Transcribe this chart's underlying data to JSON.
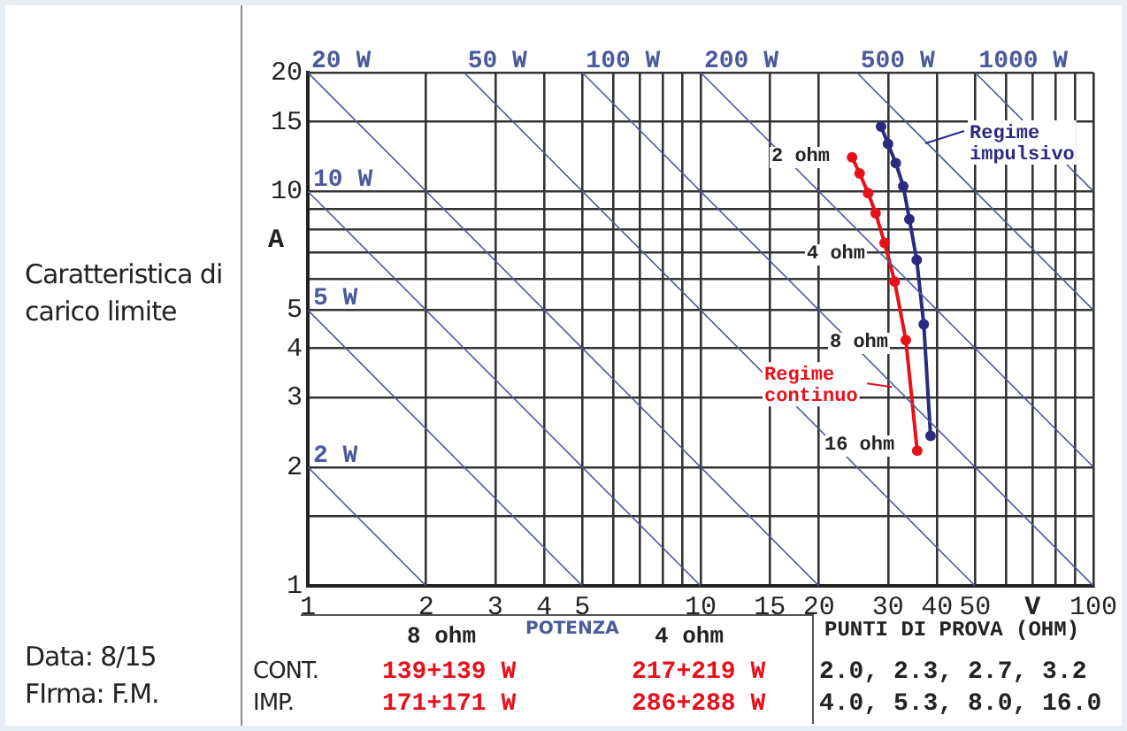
{
  "chart_data": {
    "type": "line",
    "title": "Caratteristica di carico limite",
    "xlabel": "V",
    "ylabel": "A",
    "log": "xy",
    "grid": true,
    "legend": "top right",
    "marker": "circle",
    "xlim": [
      1,
      100
    ],
    "ylim": [
      1,
      20
    ],
    "xticks": [
      1,
      2,
      3,
      4,
      5,
      {
        "value": 6,
        "label": null
      },
      {
        "value": 7,
        "label": null
      },
      {
        "value": 8,
        "label": null
      },
      {
        "value": 9,
        "label": null
      },
      10,
      15,
      20,
      30,
      40,
      50,
      {
        "value": 60,
        "label": null
      },
      {
        "value": 70,
        "label": null
      },
      {
        "value": 80,
        "label": null
      },
      {
        "value": 90,
        "label": null
      },
      100
    ],
    "yticks": [
      1,
      {
        "value": 1.5,
        "label": null
      },
      2,
      3,
      4,
      5,
      {
        "value": 6,
        "label": null
      },
      {
        "value": 7,
        "label": null
      },
      {
        "value": 8,
        "label": null
      },
      {
        "value": 9,
        "label": null
      },
      10,
      15,
      20
    ],
    "series": [
      {
        "name": "2 W",
        "color": "#4a5a9a",
        "marker": "none",
        "x": [
          1,
          2
        ],
        "values": [
          2,
          1
        ]
      },
      {
        "name": "5 W",
        "color": "#4a5a9a",
        "marker": "none",
        "x": [
          1,
          5
        ],
        "values": [
          5,
          1
        ]
      },
      {
        "name": "10 W",
        "color": "#4a5a9a",
        "marker": "none",
        "x": [
          1,
          10
        ],
        "values": [
          10,
          1
        ]
      },
      {
        "name": "20 W",
        "color": "#4a5a9a",
        "marker": "none",
        "x": [
          1,
          20
        ],
        "values": [
          20,
          1
        ]
      },
      {
        "name": "50 W",
        "color": "#4a5a9a",
        "marker": "none",
        "x": [
          2.5,
          50
        ],
        "values": [
          20,
          1
        ]
      },
      {
        "name": "100 W",
        "color": "#4a5a9a",
        "marker": "none",
        "x": [
          5,
          100
        ],
        "values": [
          20,
          1
        ]
      },
      {
        "name": "200 W",
        "color": "#4a5a9a",
        "marker": "none",
        "x": [
          10,
          100
        ],
        "values": [
          20,
          2
        ]
      },
      {
        "name": "500 W",
        "color": "#4a5a9a",
        "marker": "none",
        "x": [
          25,
          100
        ],
        "values": [
          20,
          5
        ]
      },
      {
        "name": "1000 W",
        "color": "#4a5a9a",
        "marker": "none",
        "x": [
          50,
          100
        ],
        "values": [
          20,
          10
        ]
      },
      {
        "name": "Regime continuo",
        "color": "#e8101a",
        "x": [
          24.3,
          25.4,
          26.7,
          27.9,
          29.4,
          31.2,
          33.3,
          35.6
        ],
        "values": [
          12.2,
          11.1,
          9.9,
          8.8,
          7.4,
          5.9,
          4.2,
          2.2
        ]
      },
      {
        "name": "Regime impulsivo",
        "color": "#2a2a80",
        "x": [
          28.8,
          30.0,
          31.4,
          32.8,
          34.0,
          35.5,
          37.0,
          38.5
        ],
        "values": [
          14.6,
          13.2,
          11.8,
          10.3,
          8.5,
          6.7,
          4.6,
          2.4
        ]
      }
    ],
    "annotations": [
      "2 ohm",
      "4 ohm",
      "8 ohm",
      "16 ohm",
      "Data: 8/15",
      "FIrma: F.M.",
      "8 ohm",
      "POTENZA",
      "4 ohm",
      "CONT.",
      "139+139 W",
      "217+219 W",
      "IMP.",
      "171+171 W",
      "286+288 W",
      "PUNTI DI PROVA (OHM)",
      "2.0, 2.3, 2.7, 3.2",
      "4.0, 5.3, 8.0, 16.0"
    ]
  }
}
